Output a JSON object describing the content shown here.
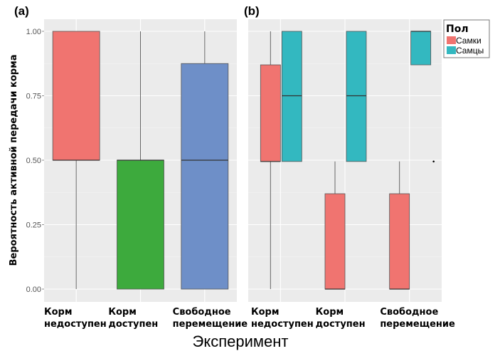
{
  "chart_data": [
    {
      "type": "boxplot",
      "panel_label": "(a)",
      "ylabel": "Вероятность активной передачи корма",
      "xlabel": "Эксперимент",
      "ylim": [
        0,
        1
      ],
      "yticks": [
        "0.00",
        "0.25",
        "0.50",
        "0.75",
        "1.00"
      ],
      "yticks_values": [
        0,
        0.25,
        0.5,
        0.75,
        1.0
      ],
      "grid": true,
      "categories": [
        {
          "line1": "Корм",
          "line2": "недоступен"
        },
        {
          "line1": "Корм",
          "line2": "доступен"
        },
        {
          "line1": "Свободное",
          "line2": "перемещение"
        }
      ],
      "boxes": [
        {
          "category": 0,
          "color": "#F07470",
          "whisker_low": 0.0,
          "q1": 0.5,
          "median": 0.5,
          "q3": 1.0,
          "whisker_high": 1.0
        },
        {
          "category": 1,
          "color": "#3DAA3D",
          "whisker_low": 0.0,
          "q1": 0.0,
          "median": 0.5,
          "q3": 0.5,
          "whisker_high": 1.0
        },
        {
          "category": 2,
          "color": "#6E8FC8",
          "whisker_low": 0.0,
          "q1": 0.0,
          "median": 0.5,
          "q3": 0.875,
          "whisker_high": 1.0
        }
      ]
    },
    {
      "type": "boxplot",
      "panel_label": "(b)",
      "ylim": [
        0,
        1
      ],
      "grid": true,
      "categories": [
        {
          "line1": "Корм",
          "line2": "недоступен"
        },
        {
          "line1": "Корм",
          "line2": "доступен"
        },
        {
          "line1": "Свободное",
          "line2": "перемещение"
        }
      ],
      "legend": {
        "title": "Пол",
        "position": "top-right",
        "entries": [
          {
            "label": "Самки",
            "color": "#F07470"
          },
          {
            "label": "Самцы",
            "color": "#33B8C0"
          }
        ]
      },
      "boxes": [
        {
          "category": 0,
          "series": 0,
          "color": "#F07470",
          "whisker_low": 0.0,
          "q1": 0.495,
          "median": 0.495,
          "q3": 0.87,
          "whisker_high": 1.0
        },
        {
          "category": 0,
          "series": 1,
          "color": "#33B8C0",
          "whisker_low": 0.495,
          "q1": 0.495,
          "median": 0.75,
          "q3": 1.0,
          "whisker_high": 1.0
        },
        {
          "category": 1,
          "series": 0,
          "color": "#F07470",
          "whisker_low": 0.0,
          "q1": 0.0,
          "median": 0.0,
          "q3": 0.37,
          "whisker_high": 0.495
        },
        {
          "category": 1,
          "series": 1,
          "color": "#33B8C0",
          "whisker_low": 0.495,
          "q1": 0.495,
          "median": 0.75,
          "q3": 1.0,
          "whisker_high": 1.0
        },
        {
          "category": 2,
          "series": 0,
          "color": "#F07470",
          "whisker_low": 0.0,
          "q1": 0.0,
          "median": 0.0,
          "q3": 0.37,
          "whisker_high": 0.495
        },
        {
          "category": 2,
          "series": 1,
          "color": "#33B8C0",
          "whisker_low": 0.87,
          "q1": 0.87,
          "median": 1.0,
          "q3": 1.0,
          "whisker_high": 1.0
        }
      ],
      "outliers": [
        {
          "category": 2,
          "series": 1,
          "value": 0.495
        }
      ]
    }
  ]
}
